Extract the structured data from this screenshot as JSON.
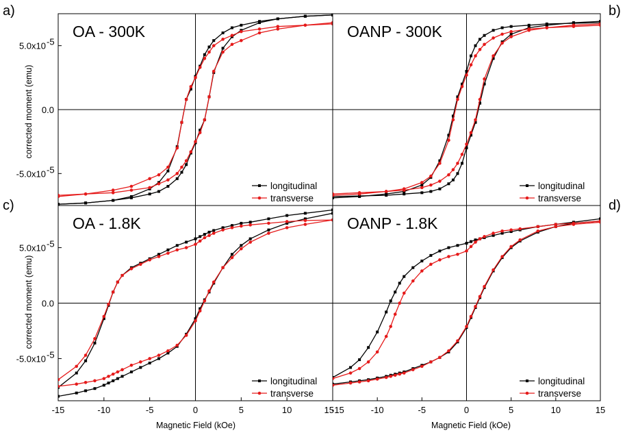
{
  "figure": {
    "ylabel": "corrected moment (emu)",
    "xlabel": "Magnetic Field (kOe)",
    "series_colors": {
      "longitudinal": "#000000",
      "transverse": "#e51a1a"
    }
  },
  "chart_data": [
    {
      "type": "line",
      "panel": "a)",
      "title": "OA - 300K",
      "xlim": [
        -15,
        15
      ],
      "ylim": [
        -7.5e-05,
        7.5e-05
      ],
      "x_ticks": [],
      "y_ticks": [
        -5e-05,
        0,
        5e-05
      ],
      "y_tick_labels": [
        "-5.0x10",
        "0.0",
        "5.0x10"
      ],
      "y_tick_exp": [
        "-5",
        "",
        "-5"
      ],
      "legend": "bottom-right",
      "series": [
        {
          "name": "longitudinal",
          "color": "#000000",
          "marker": "square",
          "x": [
            -15,
            -12,
            -9,
            -7,
            -5,
            -4,
            -3,
            -2,
            -1.5,
            -1,
            -0.5,
            0,
            0.5,
            1,
            1.5,
            2,
            3,
            4,
            5,
            7,
            9,
            12,
            15
          ],
          "y_desc": [
            -7.4e-05,
            -7.3e-05,
            -7.1e-05,
            -6.8e-05,
            -6.2e-05,
            -5.7e-05,
            -4.8e-05,
            -2.9e-05,
            -1e-05,
            8e-06,
            1.6e-05,
            2.6e-05,
            3.4e-05,
            4.3e-05,
            4.9e-05,
            5.4e-05,
            6e-05,
            6.4e-05,
            6.6e-05,
            6.9e-05,
            7.1e-05,
            7.3e-05,
            7.4e-05
          ],
          "y_asc": [
            -7.4e-05,
            -7.3e-05,
            -7.1e-05,
            -6.9e-05,
            -6.6e-05,
            -6.4e-05,
            -6e-05,
            -5.4e-05,
            -4.9e-05,
            -4.3e-05,
            -3.4e-05,
            -2.6e-05,
            -1.6e-05,
            -8e-06,
            1e-05,
            2.9e-05,
            4.8e-05,
            5.7e-05,
            6.2e-05,
            6.8e-05,
            7.1e-05,
            7.3e-05,
            7.4e-05
          ]
        },
        {
          "name": "transverse",
          "color": "#e51a1a",
          "marker": "circle",
          "x": [
            -15,
            -12,
            -9,
            -7,
            -5,
            -4,
            -3,
            -2,
            -1.5,
            -1,
            -0.5,
            0,
            0.5,
            1,
            1.5,
            2,
            3,
            4,
            5,
            7,
            9,
            12,
            15
          ],
          "y_desc": [
            -6.8e-05,
            -6.6e-05,
            -6.3e-05,
            -6e-05,
            -5.4e-05,
            -5.1e-05,
            -4.5e-05,
            -3e-05,
            -1e-05,
            8e-06,
            1.8e-05,
            2.5e-05,
            3.3e-05,
            4e-05,
            4.5e-05,
            5e-05,
            5.5e-05,
            5.8e-05,
            6.1e-05,
            6.3e-05,
            6.5e-05,
            6.6e-05,
            6.7e-05
          ],
          "y_asc": [
            -6.7e-05,
            -6.6e-05,
            -6.5e-05,
            -6.3e-05,
            -6.1e-05,
            -5.8e-05,
            -5.5e-05,
            -5e-05,
            -4.5e-05,
            -4e-05,
            -3.3e-05,
            -2.5e-05,
            -1.8e-05,
            -8e-06,
            1e-05,
            3e-05,
            4.5e-05,
            5.1e-05,
            5.4e-05,
            6e-05,
            6.3e-05,
            6.6e-05,
            6.8e-05
          ]
        }
      ]
    },
    {
      "type": "line",
      "panel": "b)",
      "title": "OANP - 300K",
      "xlim": [
        -15,
        15
      ],
      "ylim": [
        -7.5e-05,
        7.5e-05
      ],
      "x_ticks": [],
      "y_ticks": [],
      "legend": "bottom-right",
      "series": [
        {
          "name": "longitudinal",
          "color": "#000000",
          "marker": "square",
          "x": [
            -15,
            -12,
            -9,
            -7,
            -5,
            -4,
            -3,
            -2,
            -1.5,
            -1,
            -0.5,
            0,
            0.5,
            1,
            1.5,
            2,
            3,
            4,
            5,
            7,
            9,
            12,
            15
          ],
          "y_desc": [
            -6.9e-05,
            -6.8e-05,
            -6.6e-05,
            -6.4e-05,
            -5.9e-05,
            -5.3e-05,
            -4e-05,
            -2e-05,
            -5e-06,
            1e-05,
            2e-05,
            3e-05,
            4.2e-05,
            5e-05,
            5.5e-05,
            5.8e-05,
            6.2e-05,
            6.4e-05,
            6.5e-05,
            6.6e-05,
            6.7e-05,
            6.75e-05,
            6.8e-05
          ],
          "y_asc": [
            -6.8e-05,
            -6.75e-05,
            -6.7e-05,
            -6.6e-05,
            -6.5e-05,
            -6.4e-05,
            -6.2e-05,
            -5.8e-05,
            -5.5e-05,
            -5e-05,
            -4.2e-05,
            -3e-05,
            -2e-05,
            -1e-05,
            5e-06,
            2e-05,
            4e-05,
            5.3e-05,
            5.9e-05,
            6.4e-05,
            6.6e-05,
            6.8e-05,
            6.9e-05
          ]
        },
        {
          "name": "transverse",
          "color": "#e51a1a",
          "marker": "circle",
          "x": [
            -15,
            -12,
            -9,
            -7,
            -5,
            -4,
            -3,
            -2,
            -1.5,
            -1,
            -0.5,
            0,
            0.5,
            1,
            1.5,
            2,
            3,
            4,
            5,
            7,
            9,
            12,
            15
          ],
          "y_desc": [
            -6.7e-05,
            -6.6e-05,
            -6.4e-05,
            -6.2e-05,
            -5.7e-05,
            -5.2e-05,
            -4.2e-05,
            -2.4e-05,
            -8e-06,
            8e-06,
            1.8e-05,
            2.7e-05,
            3.5e-05,
            4.2e-05,
            4.7e-05,
            5.1e-05,
            5.6e-05,
            5.9e-05,
            6.1e-05,
            6.3e-05,
            6.4e-05,
            6.5e-05,
            6.6e-05
          ],
          "y_asc": [
            -6.6e-05,
            -6.5e-05,
            -6.4e-05,
            -6.3e-05,
            -6.1e-05,
            -5.9e-05,
            -5.6e-05,
            -5.1e-05,
            -4.7e-05,
            -4.2e-05,
            -3.5e-05,
            -2.7e-05,
            -1.8e-05,
            -8e-06,
            8e-06,
            2.4e-05,
            4.2e-05,
            5.2e-05,
            5.7e-05,
            6.2e-05,
            6.4e-05,
            6.6e-05,
            6.7e-05
          ]
        }
      ]
    },
    {
      "type": "line",
      "panel": "c)",
      "title": "OA - 1.8K",
      "xlim": [
        -15,
        15
      ],
      "ylim": [
        -8.8e-05,
        8.8e-05
      ],
      "x_ticks": [
        -15,
        -10,
        -5,
        0,
        5,
        10,
        15
      ],
      "x_tick_labels": [
        "-15",
        "-10",
        "-5",
        "0",
        "5",
        "10",
        "15"
      ],
      "y_ticks": [
        -5e-05,
        0,
        5e-05
      ],
      "y_tick_labels": [
        "-5.0x10",
        "0.0",
        "5.0x10"
      ],
      "y_tick_exp": [
        "-5",
        "",
        "-5"
      ],
      "legend": "bottom-right",
      "series": [
        {
          "name": "longitudinal",
          "color": "#000000",
          "marker": "square",
          "x": [
            -15,
            -13,
            -12,
            -11,
            -10,
            -9.5,
            -9,
            -8.5,
            -8,
            -7,
            -6,
            -5,
            -4,
            -3,
            -2,
            -1,
            0,
            0.5,
            1,
            1.5,
            2,
            3,
            4,
            5,
            6,
            8,
            10,
            12,
            15
          ],
          "y_desc": [
            -7.6e-05,
            -6.3e-05,
            -5.2e-05,
            -3.6e-05,
            -1.4e-05,
            -2e-06,
            1e-05,
            1.9e-05,
            2.5e-05,
            3.2e-05,
            3.6e-05,
            4e-05,
            4.4e-05,
            4.8e-05,
            5.2e-05,
            5.5e-05,
            5.8e-05,
            6e-05,
            6.2e-05,
            6.4e-05,
            6.55e-05,
            6.8e-05,
            7e-05,
            7.2e-05,
            7.3e-05,
            7.6e-05,
            7.9e-05,
            8.1e-05,
            8.4e-05
          ],
          "y_asc": [
            -8.4e-05,
            -8.1e-05,
            -7.9e-05,
            -7.7e-05,
            -7.4e-05,
            -7.2e-05,
            -7e-05,
            -6.8e-05,
            -6.6e-05,
            -6.2e-05,
            -5.8e-05,
            -5.4e-05,
            -5e-05,
            -4.5e-05,
            -3.9e-05,
            -2.8e-05,
            -1.4e-05,
            -5e-06,
            3e-06,
            1e-05,
            1.8e-05,
            3.2e-05,
            4.4e-05,
            5.2e-05,
            5.8e-05,
            6.6e-05,
            7.2e-05,
            7.6e-05,
            8.1e-05
          ]
        },
        {
          "name": "transverse",
          "color": "#e51a1a",
          "marker": "circle",
          "x": [
            -15,
            -13,
            -12,
            -11,
            -10,
            -9.5,
            -9,
            -8.5,
            -8,
            -7,
            -6,
            -5,
            -4,
            -3,
            -2,
            -1,
            0,
            0.5,
            1,
            1.5,
            2,
            3,
            4,
            5,
            6,
            8,
            10,
            12,
            15
          ],
          "y_desc": [
            -6.9e-05,
            -5.7e-05,
            -4.7e-05,
            -3.2e-05,
            -1.2e-05,
            -1e-06,
            1e-05,
            1.9e-05,
            2.5e-05,
            3.1e-05,
            3.5e-05,
            3.9e-05,
            4.2e-05,
            4.5e-05,
            4.8e-05,
            5e-05,
            5.3e-05,
            5.6e-05,
            5.9e-05,
            6.1e-05,
            6.3e-05,
            6.6e-05,
            6.8e-05,
            6.95e-05,
            7.05e-05,
            7.2e-05,
            7.35e-05,
            7.45e-05,
            7.5e-05
          ],
          "y_asc": [
            -7.5e-05,
            -7.3e-05,
            -7.15e-05,
            -7e-05,
            -6.8e-05,
            -6.6e-05,
            -6.4e-05,
            -6.2e-05,
            -6e-05,
            -5.6e-05,
            -5.3e-05,
            -5e-05,
            -4.7e-05,
            -4.3e-05,
            -3.8e-05,
            -2.9e-05,
            -1.6e-05,
            -7e-06,
            2e-06,
            1.1e-05,
            1.9e-05,
            3.2e-05,
            4.1e-05,
            4.9e-05,
            5.5e-05,
            6.3e-05,
            6.8e-05,
            7.1e-05,
            7.5e-05
          ]
        }
      ]
    },
    {
      "type": "line",
      "panel": "d)",
      "title": "OANP - 1.8K",
      "xlim": [
        -15,
        15
      ],
      "ylim": [
        -8.8e-05,
        8.8e-05
      ],
      "x_ticks": [
        -15,
        -10,
        -5,
        0,
        5,
        10,
        15
      ],
      "x_tick_labels": [
        "-15",
        "-10",
        "-5",
        "0",
        "5",
        "10",
        "15"
      ],
      "y_ticks": [],
      "legend": "bottom-right",
      "series": [
        {
          "name": "longitudinal",
          "color": "#000000",
          "marker": "square",
          "x": [
            -15,
            -13,
            -12,
            -11,
            -10,
            -9,
            -8.5,
            -8,
            -7.5,
            -7,
            -6,
            -5,
            -4,
            -3,
            -2,
            -1,
            0,
            0.5,
            1,
            1.5,
            2,
            3,
            4,
            5,
            6,
            8,
            10,
            12,
            15
          ],
          "y_desc": [
            -6.7e-05,
            -5.8e-05,
            -5.1e-05,
            -4e-05,
            -2.6e-05,
            -8e-06,
            2e-06,
            1e-05,
            1.8e-05,
            2.4e-05,
            3.2e-05,
            3.8e-05,
            4.3e-05,
            4.7e-05,
            5e-05,
            5.2e-05,
            5.4e-05,
            5.55e-05,
            5.7e-05,
            5.8e-05,
            5.9e-05,
            6.1e-05,
            6.3e-05,
            6.45e-05,
            6.6e-05,
            6.9e-05,
            7.1e-05,
            7.3e-05,
            7.6e-05
          ],
          "y_asc": [
            -7.3e-05,
            -7.1e-05,
            -7e-05,
            -6.9e-05,
            -6.75e-05,
            -6.6e-05,
            -6.5e-05,
            -6.4e-05,
            -6.3e-05,
            -6.2e-05,
            -5.9e-05,
            -5.6e-05,
            -5.3e-05,
            -4.9e-05,
            -4.4e-05,
            -3.5e-05,
            -2.2e-05,
            -1.3e-05,
            -4e-06,
            5e-06,
            1.4e-05,
            2.9e-05,
            4.1e-05,
            5e-05,
            5.6e-05,
            6.4e-05,
            6.9e-05,
            7.2e-05,
            7.4e-05
          ]
        },
        {
          "name": "transverse",
          "color": "#e51a1a",
          "marker": "circle",
          "x": [
            -15,
            -13,
            -12,
            -11,
            -10,
            -9,
            -8.5,
            -8,
            -7.5,
            -7,
            -6,
            -5,
            -4,
            -3,
            -2,
            -1,
            0,
            0.5,
            1,
            1.5,
            2,
            3,
            4,
            5,
            6,
            8,
            10,
            12,
            15
          ],
          "y_desc": [
            -6.8e-05,
            -6.3e-05,
            -5.9e-05,
            -5.3e-05,
            -4.4e-05,
            -3e-05,
            -2.1e-05,
            -1e-05,
            0.0,
            9e-06,
            2e-05,
            2.9e-05,
            3.5e-05,
            3.9e-05,
            4.2e-05,
            4.4e-05,
            4.7e-05,
            5.1e-05,
            5.5e-05,
            5.8e-05,
            6e-05,
            6.3e-05,
            6.5e-05,
            6.6e-05,
            6.7e-05,
            6.9e-05,
            7.1e-05,
            7.2e-05,
            7.4e-05
          ],
          "y_asc": [
            -7.4e-05,
            -7.2e-05,
            -7.1e-05,
            -7e-05,
            -6.85e-05,
            -6.7e-05,
            -6.6e-05,
            -6.5e-05,
            -6.4e-05,
            -6.3e-05,
            -6e-05,
            -5.7e-05,
            -5.3e-05,
            -4.9e-05,
            -4.3e-05,
            -3.4e-05,
            -2.1e-05,
            -1.2e-05,
            -3e-06,
            6e-06,
            1.5e-05,
            3e-05,
            4.2e-05,
            5.1e-05,
            5.7e-05,
            6.5e-05,
            6.9e-05,
            7.1e-05,
            7.3e-05
          ]
        }
      ]
    }
  ]
}
